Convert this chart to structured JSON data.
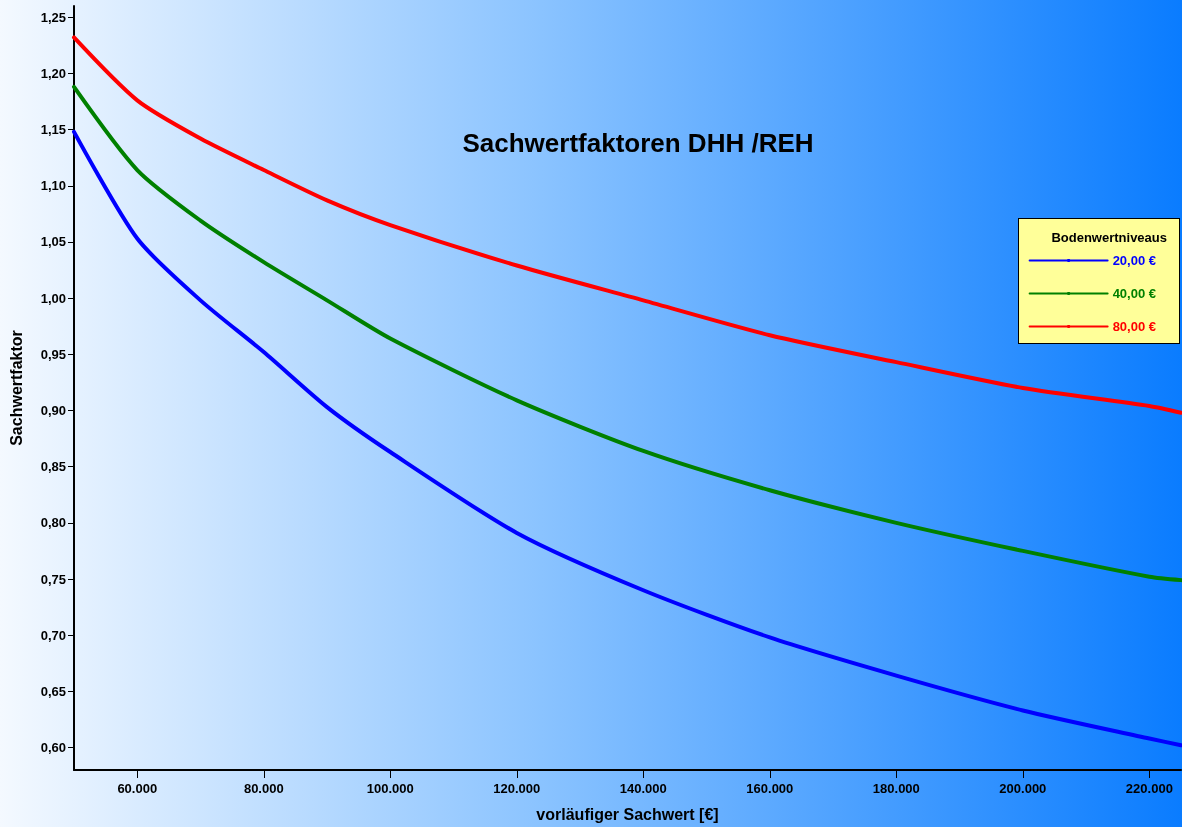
{
  "chart_data": {
    "type": "line",
    "title": "Sachwertfaktoren DHH /REH",
    "xlabel": "vorläufiger Sachwert [€]",
    "ylabel": "Sachwertfaktor",
    "legend_title": "Bodenwertniveaus",
    "legend": "right",
    "grid": false,
    "marker": "none",
    "line_style": "solid",
    "xlim": [
      50000,
      225000
    ],
    "ylim": [
      0.58,
      1.26
    ],
    "xticks": [
      {
        "value": 60000,
        "label": "60.000"
      },
      {
        "value": 80000,
        "label": "80.000"
      },
      {
        "value": 100000,
        "label": "100.000"
      },
      {
        "value": 120000,
        "label": "120.000"
      },
      {
        "value": 140000,
        "label": "140.000"
      },
      {
        "value": 160000,
        "label": "160.000"
      },
      {
        "value": 180000,
        "label": "180.000"
      },
      {
        "value": 200000,
        "label": "200.000"
      },
      {
        "value": 220000,
        "label": "220.000"
      }
    ],
    "yticks": [
      {
        "value": 0.6,
        "label": "0,60"
      },
      {
        "value": 0.65,
        "label": "0,65"
      },
      {
        "value": 0.7,
        "label": "0,70"
      },
      {
        "value": 0.75,
        "label": "0,75"
      },
      {
        "value": 0.8,
        "label": "0,80"
      },
      {
        "value": 0.85,
        "label": "0,85"
      },
      {
        "value": 0.9,
        "label": "0,90"
      },
      {
        "value": 0.95,
        "label": "0,95"
      },
      {
        "value": 1.0,
        "label": "1,00"
      },
      {
        "value": 1.05,
        "label": "1,05"
      },
      {
        "value": 1.1,
        "label": "1,10"
      },
      {
        "value": 1.15,
        "label": "1,15"
      },
      {
        "value": 1.2,
        "label": "1,20"
      },
      {
        "value": 1.25,
        "label": "1,25"
      }
    ],
    "x": [
      50000,
      60000,
      70000,
      80000,
      90000,
      100000,
      120000,
      140000,
      160000,
      180000,
      200000,
      220000,
      225000
    ],
    "series": [
      {
        "name": "20,00 €",
        "color": "#0000ff",
        "values": [
          1.148,
          1.053,
          0.998,
          0.952,
          0.903,
          0.863,
          0.791,
          0.74,
          0.698,
          0.664,
          0.633,
          0.608,
          0.602
        ]
      },
      {
        "name": "40,00 €",
        "color": "#008000",
        "values": [
          1.188,
          1.114,
          1.069,
          1.032,
          0.998,
          0.964,
          0.909,
          0.864,
          0.829,
          0.8,
          0.775,
          0.752,
          0.749
        ]
      },
      {
        "name": "80,00 €",
        "color": "#ff0000",
        "values": [
          1.232,
          1.176,
          1.142,
          1.114,
          1.087,
          1.065,
          1.029,
          0.998,
          0.967,
          0.943,
          0.92,
          0.904,
          0.898
        ]
      }
    ]
  }
}
